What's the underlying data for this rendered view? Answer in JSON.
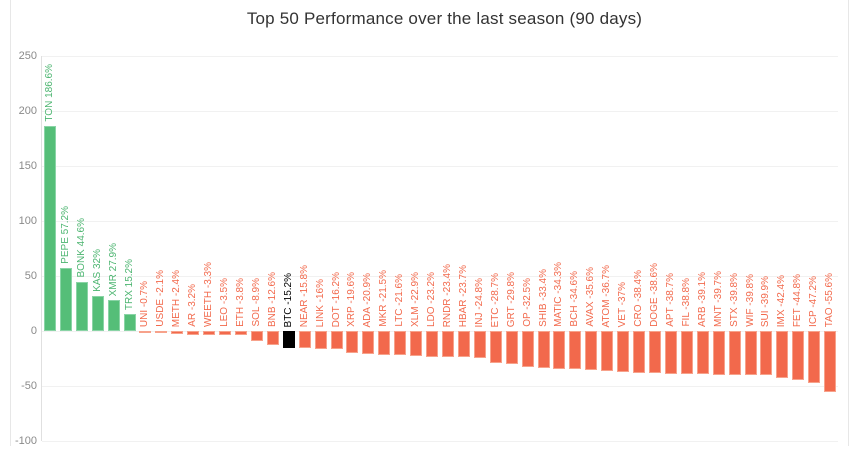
{
  "page": {
    "title": "Top 50 Performance over the last season (90 days)"
  },
  "colors": {
    "gain": "#55be78",
    "loss": "#f2694c",
    "highlight": "#000000",
    "grid": "#f1f1f1",
    "axis": "#e0e0e0",
    "tick_text": "#8a8a8a",
    "title_text": "#333333"
  },
  "chart_data": {
    "type": "bar",
    "title": "Top 50 Performance over the last season (90 days)",
    "xlabel": "",
    "ylabel": "",
    "unit": "%",
    "ylim": [
      -100,
      250
    ],
    "yticks": [
      250,
      200,
      150,
      100,
      50,
      0,
      -50,
      -100
    ],
    "grid": true,
    "legend": false,
    "bar_label_rotation_deg": 90,
    "series": [
      {
        "symbol": "TON",
        "value": 186.6,
        "label": "TON 186.6%",
        "kind": "gain"
      },
      {
        "symbol": "PEPE",
        "value": 57.2,
        "label": "PEPE 57.2%",
        "kind": "gain"
      },
      {
        "symbol": "BONK",
        "value": 44.6,
        "label": "BONK 44.6%",
        "kind": "gain"
      },
      {
        "symbol": "KAS",
        "value": 32,
        "label": "KAS 32%",
        "kind": "gain"
      },
      {
        "symbol": "XMR",
        "value": 27.9,
        "label": "XMR 27.9%",
        "kind": "gain"
      },
      {
        "symbol": "TRX",
        "value": 15.2,
        "label": "TRX 15.2%",
        "kind": "gain"
      },
      {
        "symbol": "UNI",
        "value": -0.7,
        "label": "UNI -0.7%",
        "kind": "loss"
      },
      {
        "symbol": "USDE",
        "value": -2.1,
        "label": "USDE -2.1%",
        "kind": "loss"
      },
      {
        "symbol": "METH",
        "value": -2.4,
        "label": "METH -2.4%",
        "kind": "loss"
      },
      {
        "symbol": "AR",
        "value": -3.2,
        "label": "AR -3.2%",
        "kind": "loss"
      },
      {
        "symbol": "WEETH",
        "value": -3.3,
        "label": "WEETH -3.3%",
        "kind": "loss"
      },
      {
        "symbol": "LEO",
        "value": -3.5,
        "label": "LEO -3.5%",
        "kind": "loss"
      },
      {
        "symbol": "ETH",
        "value": -3.8,
        "label": "ETH -3.8%",
        "kind": "loss"
      },
      {
        "symbol": "SOL",
        "value": -8.9,
        "label": "SOL -8.9%",
        "kind": "loss"
      },
      {
        "symbol": "BNB",
        "value": -12.6,
        "label": "BNB -12.6%",
        "kind": "loss"
      },
      {
        "symbol": "BTC",
        "value": -15.2,
        "label": "BTC -15.2%",
        "kind": "highlight"
      },
      {
        "symbol": "NEAR",
        "value": -15.8,
        "label": "NEAR -15.8%",
        "kind": "loss"
      },
      {
        "symbol": "LINK",
        "value": -16,
        "label": "LINK -16%",
        "kind": "loss"
      },
      {
        "symbol": "DOT",
        "value": -16.2,
        "label": "DOT -16.2%",
        "kind": "loss"
      },
      {
        "symbol": "XRP",
        "value": -19.6,
        "label": "XRP -19.6%",
        "kind": "loss"
      },
      {
        "symbol": "ADA",
        "value": -20.9,
        "label": "ADA -20.9%",
        "kind": "loss"
      },
      {
        "symbol": "MKR",
        "value": -21.5,
        "label": "MKR -21.5%",
        "kind": "loss"
      },
      {
        "symbol": "LTC",
        "value": -21.6,
        "label": "LTC -21.6%",
        "kind": "loss"
      },
      {
        "symbol": "XLM",
        "value": -22.9,
        "label": "XLM -22.9%",
        "kind": "loss"
      },
      {
        "symbol": "LDO",
        "value": -23.2,
        "label": "LDO -23.2%",
        "kind": "loss"
      },
      {
        "symbol": "RNDR",
        "value": -23.4,
        "label": "RNDR -23.4%",
        "kind": "loss"
      },
      {
        "symbol": "HBAR",
        "value": -23.7,
        "label": "HBAR -23.7%",
        "kind": "loss"
      },
      {
        "symbol": "INJ",
        "value": -24.8,
        "label": "INJ -24.8%",
        "kind": "loss"
      },
      {
        "symbol": "ETC",
        "value": -28.7,
        "label": "ETC -28.7%",
        "kind": "loss"
      },
      {
        "symbol": "GRT",
        "value": -29.8,
        "label": "GRT -29.8%",
        "kind": "loss"
      },
      {
        "symbol": "OP",
        "value": -32.5,
        "label": "OP -32.5%",
        "kind": "loss"
      },
      {
        "symbol": "SHIB",
        "value": -33.4,
        "label": "SHIB -33.4%",
        "kind": "loss"
      },
      {
        "symbol": "MATIC",
        "value": -34.3,
        "label": "MATIC -34.3%",
        "kind": "loss"
      },
      {
        "symbol": "BCH",
        "value": -34.6,
        "label": "BCH -34.6%",
        "kind": "loss"
      },
      {
        "symbol": "AVAX",
        "value": -35.6,
        "label": "AVAX -35.6%",
        "kind": "loss"
      },
      {
        "symbol": "ATOM",
        "value": -36.7,
        "label": "ATOM -36.7%",
        "kind": "loss"
      },
      {
        "symbol": "VET",
        "value": -37,
        "label": "VET -37%",
        "kind": "loss"
      },
      {
        "symbol": "CRO",
        "value": -38.4,
        "label": "CRO -38.4%",
        "kind": "loss"
      },
      {
        "symbol": "DOGE",
        "value": -38.6,
        "label": "DOGE -38.6%",
        "kind": "loss"
      },
      {
        "symbol": "APT",
        "value": -38.7,
        "label": "APT -38.7%",
        "kind": "loss"
      },
      {
        "symbol": "FIL",
        "value": -38.8,
        "label": "FIL -38.8%",
        "kind": "loss"
      },
      {
        "symbol": "ARB",
        "value": -39.1,
        "label": "ARB -39.1%",
        "kind": "loss"
      },
      {
        "symbol": "MNT",
        "value": -39.7,
        "label": "MNT -39.7%",
        "kind": "loss"
      },
      {
        "symbol": "STX",
        "value": -39.8,
        "label": "STX -39.8%",
        "kind": "loss"
      },
      {
        "symbol": "WIF",
        "value": -39.8,
        "label": "WIF -39.8%",
        "kind": "loss"
      },
      {
        "symbol": "SUI",
        "value": -39.9,
        "label": "SUI -39.9%",
        "kind": "loss"
      },
      {
        "symbol": "IMX",
        "value": -42.4,
        "label": "IMX -42.4%",
        "kind": "loss"
      },
      {
        "symbol": "FET",
        "value": -44.8,
        "label": "FET -44.8%",
        "kind": "loss"
      },
      {
        "symbol": "ICP",
        "value": -47.2,
        "label": "ICP -47.2%",
        "kind": "loss"
      },
      {
        "symbol": "TAO",
        "value": -55.6,
        "label": "TAO -55.6%",
        "kind": "loss"
      }
    ]
  }
}
